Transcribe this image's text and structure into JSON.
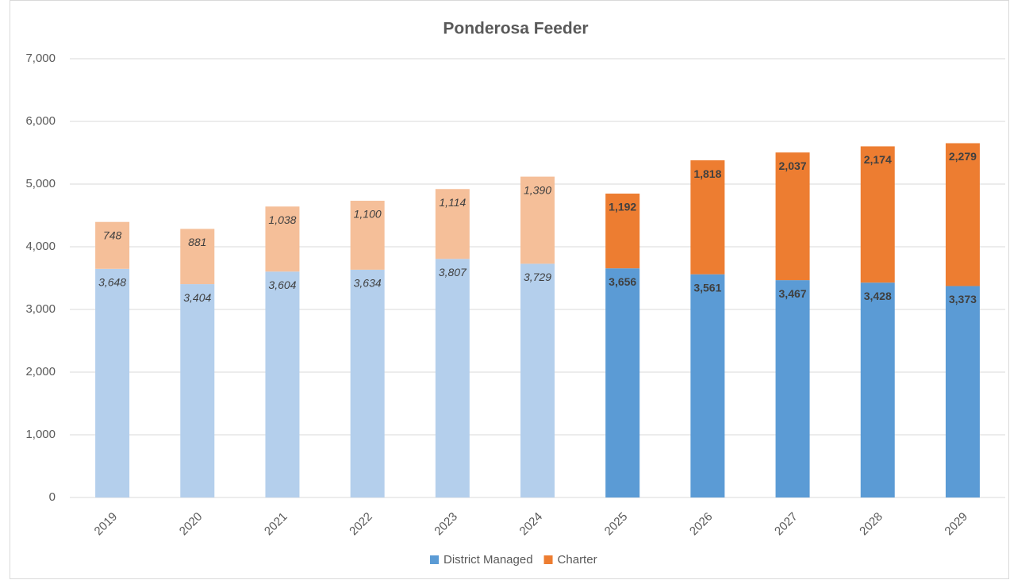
{
  "chart_data": {
    "type": "stacked_bar",
    "title": "Ponderosa Feeder",
    "categories": [
      "2019",
      "2020",
      "2021",
      "2022",
      "2023",
      "2024",
      "2025",
      "2026",
      "2027",
      "2028",
      "2029"
    ],
    "series": [
      {
        "name": "District Managed",
        "color": "#5b9bd5",
        "colors": [
          "#b4cfec",
          "#b4cfec",
          "#b4cfec",
          "#b4cfec",
          "#b4cfec",
          "#b4cfec",
          "#5b9bd5",
          "#5b9bd5",
          "#5b9bd5",
          "#5b9bd5",
          "#5b9bd5"
        ],
        "values": [
          3648,
          3404,
          3604,
          3634,
          3807,
          3729,
          3656,
          3561,
          3467,
          3428,
          3373
        ],
        "value_labels": [
          "3,648",
          "3,404",
          "3,604",
          "3,634",
          "3,807",
          "3,729",
          "3,656",
          "3,561",
          "3,467",
          "3,428",
          "3,373"
        ]
      },
      {
        "name": "Charter",
        "color": "#ed7d31",
        "colors": [
          "#f5bf99",
          "#f5bf99",
          "#f5bf99",
          "#f5bf99",
          "#f5bf99",
          "#f5bf99",
          "#ed7d31",
          "#ed7d31",
          "#ed7d31",
          "#ed7d31",
          "#ed7d31"
        ],
        "values": [
          748,
          881,
          1038,
          1100,
          1114,
          1390,
          1192,
          1818,
          2037,
          2174,
          2279
        ],
        "value_labels": [
          "748",
          "881",
          "1,038",
          "1,100",
          "1,114",
          "1,390",
          "1,192",
          "1,818",
          "2,037",
          "2,174",
          "2,279"
        ]
      }
    ],
    "ylim": [
      0,
      7000
    ],
    "yticks": [
      0,
      {
        "value": 1000,
        "label": "1,000"
      },
      {
        "value": 2000,
        "label": "2,000"
      },
      {
        "value": 3000,
        "label": "3,000"
      },
      {
        "value": 4000,
        "label": "4,000"
      },
      {
        "value": 5000,
        "label": "5,000"
      },
      {
        "value": 6000,
        "label": "6,000"
      },
      {
        "value": 7000,
        "label": "7,000"
      }
    ],
    "grid": true,
    "legend": "bottom"
  }
}
